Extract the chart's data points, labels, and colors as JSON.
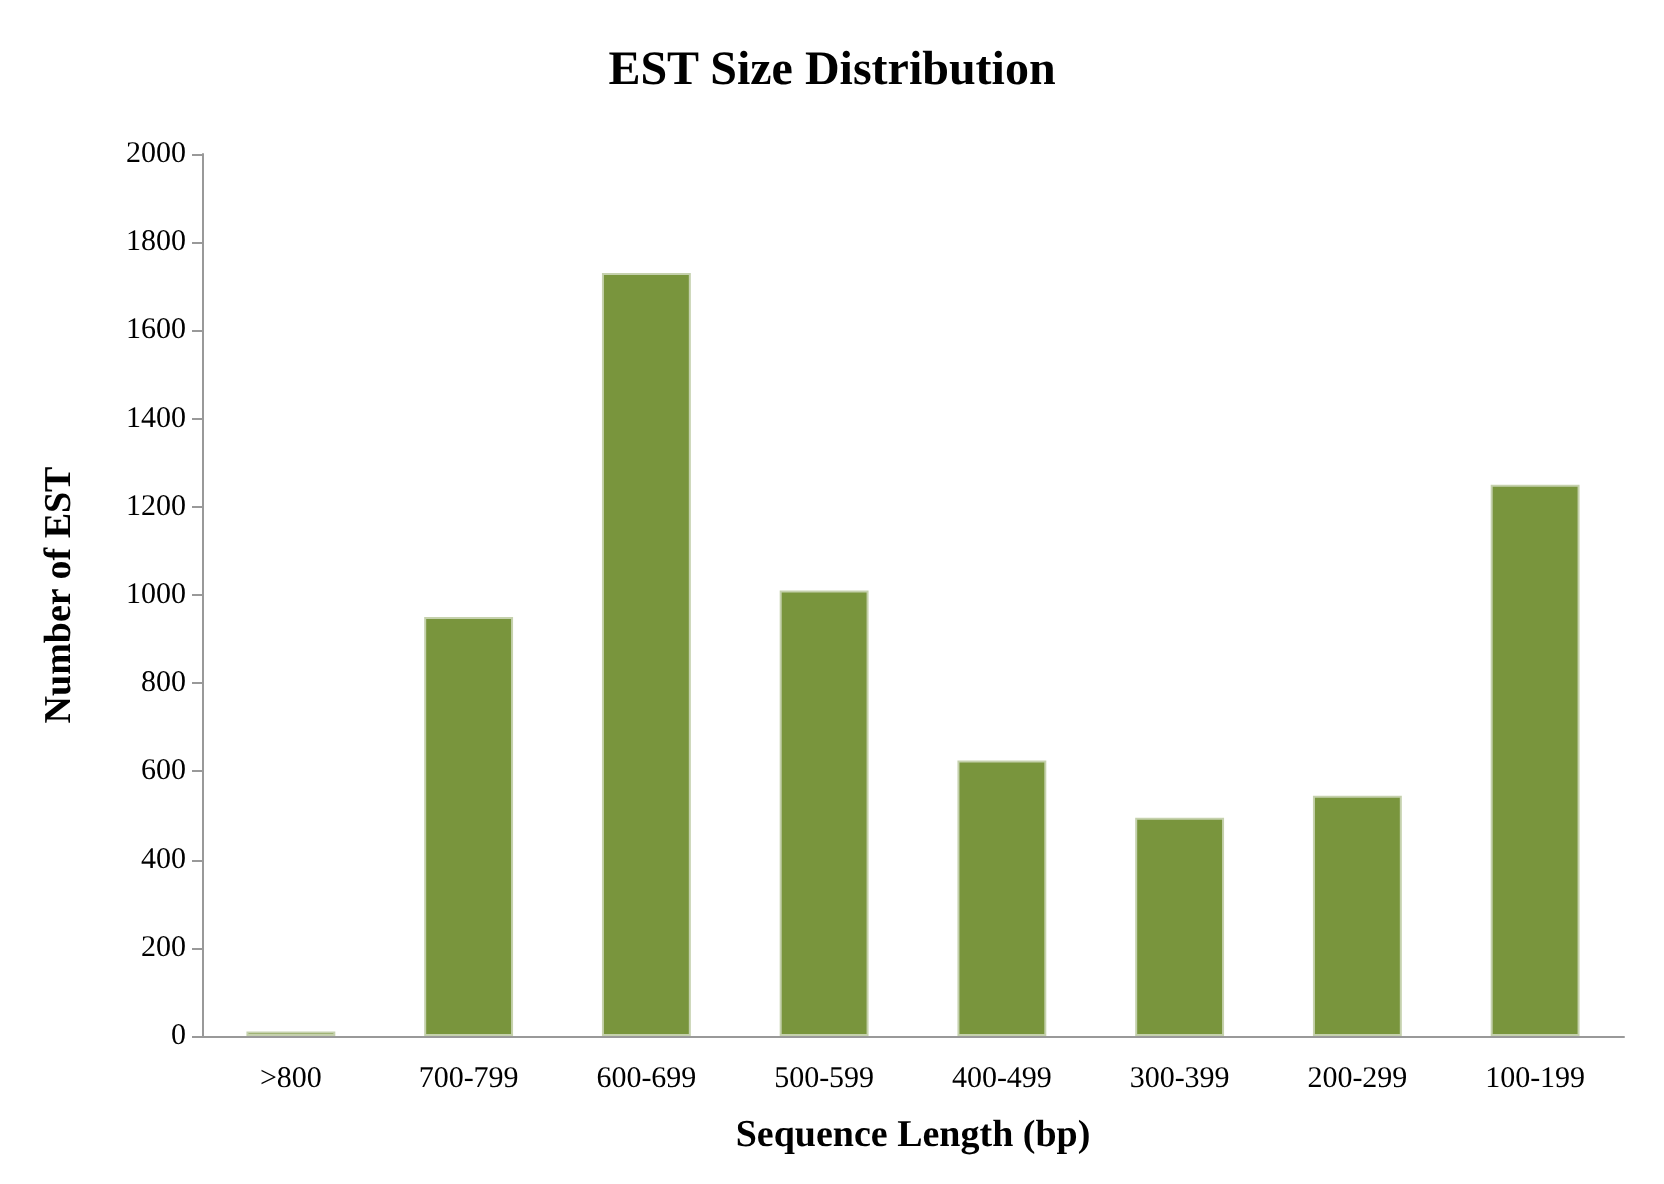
{
  "chart_data": {
    "type": "bar",
    "title": "EST Size Distribution",
    "xlabel": "Sequence Length (bp)",
    "ylabel": "Number of EST",
    "categories": [
      ">800",
      "700-799",
      "600-699",
      "500-599",
      "400-499",
      "300-399",
      "200-299",
      "100-199"
    ],
    "values": [
      10,
      950,
      1730,
      1010,
      625,
      495,
      545,
      1250
    ],
    "color": "#79953d",
    "ylim": [
      0,
      2000
    ],
    "yticks": [
      0,
      200,
      400,
      600,
      800,
      1000,
      1200,
      1400,
      1600,
      1800,
      2000
    ],
    "grid": false
  }
}
